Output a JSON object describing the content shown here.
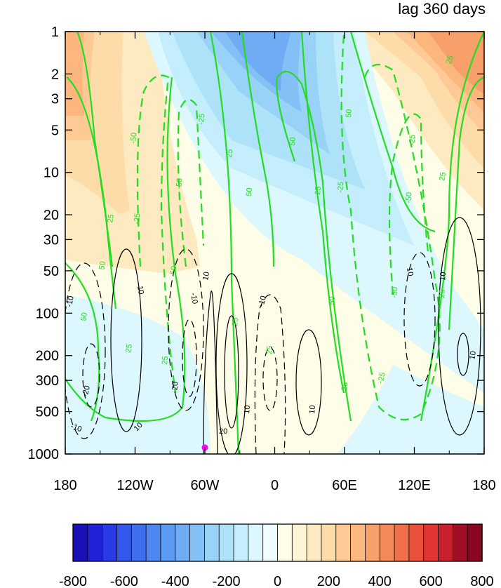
{
  "chart_data": {
    "type": "contour",
    "title": "lag 360 days",
    "xlabel": "",
    "ylabel": "",
    "x_ticks": [
      "180",
      "120W",
      "60W",
      "0",
      "60E",
      "120E",
      "180"
    ],
    "x_tick_lon": [
      -180,
      -120,
      -60,
      0,
      60,
      120,
      180
    ],
    "y_ticks": [
      "1",
      "2",
      "3",
      "5",
      "10",
      "20",
      "30",
      "50",
      "100",
      "200",
      "300",
      "500",
      "1000"
    ],
    "y_tick_values": [
      1,
      2,
      3,
      5,
      10,
      20,
      30,
      50,
      100,
      200,
      300,
      500,
      1000
    ],
    "y_scale": "log",
    "y_reversed": true,
    "xlim": [
      -180,
      180
    ],
    "ylim": [
      1000,
      1
    ],
    "colorbar": {
      "orientation": "horizontal",
      "labels": [
        "-800",
        "-600",
        "-400",
        "-200",
        "0",
        "200",
        "400",
        "600",
        "800"
      ],
      "label_values": [
        -800,
        -600,
        -400,
        -200,
        0,
        200,
        400,
        600,
        800
      ],
      "min": -800,
      "max": 800,
      "step": 50,
      "colors": [
        "#1a10b8",
        "#2222d8",
        "#2a3ae6",
        "#3558ec",
        "#3f6fef",
        "#4f87f0",
        "#5c9af2",
        "#70acf4",
        "#84c0f6",
        "#98d2f7",
        "#aee2f9",
        "#c4eefb",
        "#dcf7fd",
        "#f0fcfe",
        "#fdfde8",
        "#fef5d6",
        "#feeac0",
        "#fedcaa",
        "#fdc994",
        "#fcb67e",
        "#f8a06a",
        "#f58a58",
        "#f06f48",
        "#ea513a",
        "#e23432",
        "#c8202c",
        "#a00e26",
        "#8a0620"
      ]
    },
    "green_contours": {
      "color": "#22dd22",
      "labels": [
        "25",
        "50",
        "-25",
        "-50"
      ],
      "lines": [
        {
          "value": 25,
          "dashed": false,
          "lon": [
            -176,
            -170,
            -165,
            -157,
            -150,
            -140,
            -130,
            -128,
            -129
          ],
          "p": [
            100,
            4,
            10,
            200,
            300,
            400,
            600,
            300,
            100
          ]
        },
        {
          "value": 50,
          "dashed": false,
          "lon": [
            -180,
            -165,
            -152,
            -150
          ],
          "p": [
            100,
            30,
            10,
            5
          ]
        },
        {
          "value": -25,
          "dashed": true,
          "lon": [
            -130,
            -118,
            -95,
            -110,
            -100
          ],
          "p": [
            50,
            5,
            2,
            10,
            100
          ]
        },
        {
          "value": -50,
          "dashed": true,
          "lon": [
            -105,
            -95,
            -90,
            -75
          ],
          "p": [
            30,
            10,
            5,
            2
          ]
        },
        {
          "value": 25,
          "dashed": false,
          "lon": [
            -30,
            -25,
            -50,
            -40
          ],
          "p": [
            1000,
            300,
            10,
            1
          ]
        },
        {
          "value": 50,
          "dashed": false,
          "lon": [
            -10,
            0,
            15,
            25,
            35
          ],
          "p": [
            10,
            3,
            5,
            50,
            300
          ]
        },
        {
          "value": -25,
          "dashed": true,
          "lon": [
            55,
            35,
            50,
            60,
            95,
            100
          ],
          "p": [
            1,
            20,
            200,
            500,
            300,
            50
          ]
        },
        {
          "value": -50,
          "dashed": true,
          "lon": [
            75,
            80,
            100,
            105,
            115
          ],
          "p": [
            5,
            10,
            30,
            70,
            150
          ]
        },
        {
          "value": 25,
          "dashed": false,
          "lon": [
            110,
            120,
            130,
            138
          ],
          "p": [
            1,
            30,
            100,
            60
          ]
        },
        {
          "value": 25,
          "dashed": false,
          "lon": [
            150,
            160,
            180
          ],
          "p": [
            300,
            30,
            3
          ]
        }
      ]
    },
    "black_contours": {
      "color": "#000000",
      "labels": [
        "-10",
        "-20",
        "10",
        "20"
      ],
      "lines": [
        {
          "value": -10,
          "dashed": true,
          "center_lon": -165,
          "center_p": 200
        },
        {
          "value": -20,
          "dashed": true,
          "center_lon": -160,
          "center_p": 300
        },
        {
          "value": 10,
          "dashed": false,
          "center_lon": -125,
          "center_p": 200
        },
        {
          "value": -10,
          "dashed": true,
          "center_lon": -80,
          "center_p": 200
        },
        {
          "value": -20,
          "dashed": true,
          "center_lon": -75,
          "center_p": 250
        },
        {
          "value": 10,
          "dashed": false,
          "center_lon": -40,
          "center_p": 250
        },
        {
          "value": 20,
          "dashed": false,
          "center_lon": -35,
          "center_p": 500
        },
        {
          "value": -10,
          "dashed": true,
          "center_lon": -10,
          "center_p": 200
        },
        {
          "value": 10,
          "dashed": false,
          "center_lon": 30,
          "center_p": 300
        },
        {
          "value": 10,
          "dashed": true,
          "center_lon": 115,
          "center_p": 100
        },
        {
          "value": 10,
          "dashed": false,
          "center_lon": 150,
          "center_p": 200
        }
      ]
    },
    "marker": {
      "lon": -60,
      "p": 900,
      "color": "#ff00ff"
    }
  }
}
